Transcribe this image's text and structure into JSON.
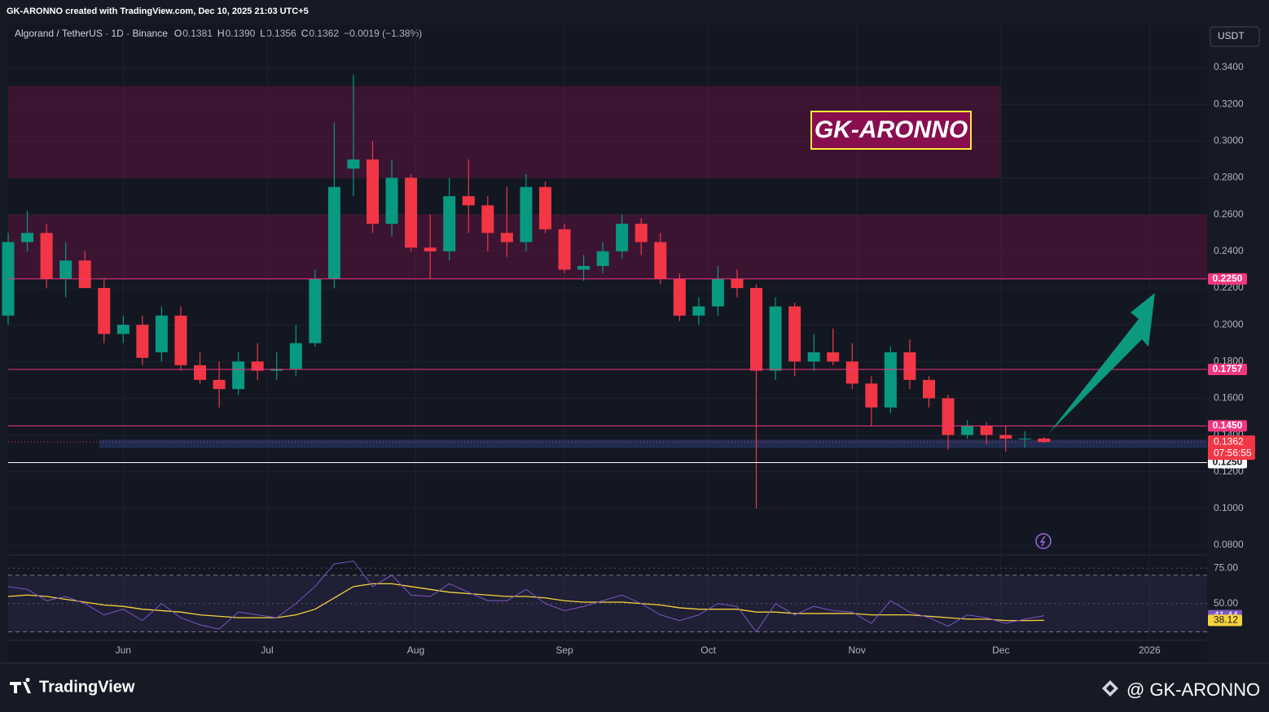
{
  "header": {
    "credit": "GK-ARONNO created with TradingView.com, Dec 10, 2025 21:03 UTC+5",
    "currency": "USDT"
  },
  "footer": {
    "brand": "TradingView",
    "author": "@ GK-ARONNO"
  },
  "watermark": "GK-ARONNO",
  "legend": {
    "symbol": "Algorand / TetherUS · 1D · Binance",
    "items": [
      {
        "key": "O",
        "value": "0.1381"
      },
      {
        "key": "H",
        "value": "0.1390"
      },
      {
        "key": "L",
        "value": "0.1356"
      },
      {
        "key": "C",
        "value": "0.1362"
      }
    ],
    "change": "−0.0019 (−1.38%)"
  },
  "chart_data": {
    "type": "candlestick",
    "up_color": "#089981",
    "down_color": "#f23645",
    "x": [
      0,
      4,
      8,
      12,
      16,
      20,
      24,
      28,
      32,
      36,
      40,
      44,
      48,
      52,
      56,
      60,
      64,
      68,
      72,
      76,
      80,
      84,
      88,
      92,
      96,
      100,
      104,
      108,
      112,
      116,
      120,
      124,
      128,
      132,
      136,
      140,
      144,
      148,
      152,
      156,
      160,
      164,
      168,
      172,
      176,
      180,
      184,
      188,
      192,
      196,
      200,
      204,
      208,
      212,
      216
    ],
    "open": [
      0.205,
      0.245,
      0.25,
      0.225,
      0.235,
      0.22,
      0.195,
      0.2,
      0.185,
      0.205,
      0.178,
      0.17,
      0.165,
      0.18,
      0.175,
      0.176,
      0.19,
      0.225,
      0.285,
      0.29,
      0.255,
      0.28,
      0.242,
      0.24,
      0.27,
      0.265,
      0.25,
      0.245,
      0.275,
      0.252,
      0.23,
      0.232,
      0.24,
      0.255,
      0.245,
      0.225,
      0.205,
      0.21,
      0.225,
      0.22,
      0.175,
      0.21,
      0.18,
      0.185,
      0.18,
      0.168,
      0.155,
      0.185,
      0.17,
      0.16,
      0.14,
      0.145,
      0.14,
      0.138,
      0.1381
    ],
    "high": [
      0.25,
      0.262,
      0.255,
      0.245,
      0.24,
      0.225,
      0.205,
      0.205,
      0.21,
      0.21,
      0.185,
      0.18,
      0.185,
      0.19,
      0.185,
      0.2,
      0.23,
      0.31,
      0.336,
      0.3,
      0.29,
      0.282,
      0.26,
      0.28,
      0.29,
      0.27,
      0.275,
      0.282,
      0.278,
      0.255,
      0.238,
      0.245,
      0.26,
      0.258,
      0.25,
      0.228,
      0.215,
      0.232,
      0.23,
      0.222,
      0.215,
      0.212,
      0.195,
      0.198,
      0.19,
      0.172,
      0.188,
      0.192,
      0.172,
      0.162,
      0.148,
      0.147,
      0.145,
      0.142,
      0.139
    ],
    "low": [
      0.2,
      0.24,
      0.22,
      0.215,
      0.22,
      0.19,
      0.19,
      0.178,
      0.18,
      0.175,
      0.168,
      0.155,
      0.162,
      0.17,
      0.17,
      0.172,
      0.188,
      0.22,
      0.27,
      0.25,
      0.248,
      0.24,
      0.225,
      0.235,
      0.25,
      0.24,
      0.237,
      0.24,
      0.25,
      0.228,
      0.224,
      0.228,
      0.236,
      0.238,
      0.222,
      0.202,
      0.2,
      0.205,
      0.215,
      0.1,
      0.17,
      0.172,
      0.175,
      0.178,
      0.165,
      0.145,
      0.152,
      0.165,
      0.155,
      0.132,
      0.138,
      0.135,
      0.131,
      0.133,
      0.1356
    ],
    "close": [
      0.245,
      0.25,
      0.225,
      0.235,
      0.22,
      0.195,
      0.2,
      0.182,
      0.205,
      0.178,
      0.17,
      0.165,
      0.18,
      0.175,
      0.176,
      0.19,
      0.225,
      0.275,
      0.29,
      0.255,
      0.28,
      0.242,
      0.24,
      0.27,
      0.265,
      0.25,
      0.245,
      0.275,
      0.252,
      0.23,
      0.232,
      0.24,
      0.255,
      0.245,
      0.225,
      0.205,
      0.21,
      0.225,
      0.22,
      0.175,
      0.21,
      0.18,
      0.185,
      0.18,
      0.168,
      0.155,
      0.185,
      0.17,
      0.16,
      0.14,
      0.145,
      0.14,
      0.138,
      0.1381,
      0.1362
    ],
    "xlim": [
      0,
      250
    ],
    "xticks": [
      {
        "value": 24,
        "label": "Jun"
      },
      {
        "value": 54,
        "label": "Jul"
      },
      {
        "value": 85,
        "label": "Aug"
      },
      {
        "value": 116,
        "label": "Sep"
      },
      {
        "value": 146,
        "label": "Oct"
      },
      {
        "value": 177,
        "label": "Nov"
      },
      {
        "value": 207,
        "label": "Dec"
      },
      {
        "value": 238,
        "label": "2026"
      }
    ],
    "ylim": [
      0.0756,
      0.3635
    ],
    "yticks": [
      {
        "value": 0.08,
        "label": "0.0800"
      },
      {
        "value": 0.1,
        "label": "0.1000"
      },
      {
        "value": 0.12,
        "label": "0.1200"
      },
      {
        "value": 0.14,
        "label": "0.1400"
      },
      {
        "value": 0.16,
        "label": "0.1600"
      },
      {
        "value": 0.18,
        "label": "0.1800"
      },
      {
        "value": 0.2,
        "label": "0.2000"
      },
      {
        "value": 0.22,
        "label": "0.2200"
      },
      {
        "value": 0.24,
        "label": "0.2400"
      },
      {
        "value": 0.26,
        "label": "0.2600"
      },
      {
        "value": 0.28,
        "label": "0.2800"
      },
      {
        "value": 0.3,
        "label": "0.3000"
      },
      {
        "value": 0.32,
        "label": "0.3200"
      },
      {
        "value": 0.34,
        "label": "0.3400"
      }
    ],
    "grid": true,
    "zones": [
      {
        "from": 0.28,
        "to": 0.33,
        "start": 0,
        "end": 207,
        "color": "rgba(136,14,79,0.35)"
      },
      {
        "from": 0.225,
        "to": 0.26,
        "start": 0,
        "end": 250,
        "color": "rgba(136,14,79,0.35)"
      },
      {
        "from": 0.133,
        "to": 0.1375,
        "start": 19,
        "end": 250,
        "color": "rgba(41,62,120,0.55)"
      }
    ],
    "levels": [
      {
        "value": 0.225,
        "label": "0.2250",
        "color": "#f23680"
      },
      {
        "value": 0.1757,
        "label": "0.1757",
        "color": "#f23680"
      },
      {
        "value": 0.145,
        "label": "0.1450",
        "color": "#f23680"
      },
      {
        "value": 0.125,
        "label": "0.1250",
        "color": "#ffffff"
      }
    ],
    "last": {
      "value": 0.1362,
      "label": "0.1362",
      "countdown": "07:56:55"
    },
    "rsi": {
      "ylim": [
        24,
        82
      ],
      "yticks": [
        {
          "value": 75,
          "label": "75.00"
        },
        {
          "value": 50,
          "label": "50.00"
        }
      ],
      "bands": [
        70,
        30
      ],
      "color": "#7e57c2",
      "ma_color": "#f7d33c",
      "values": [
        62,
        60,
        52,
        55,
        50,
        42,
        46,
        38,
        50,
        40,
        35,
        32,
        44,
        42,
        40,
        50,
        62,
        78,
        80,
        62,
        70,
        56,
        55,
        64,
        58,
        52,
        52,
        60,
        50,
        45,
        48,
        52,
        56,
        50,
        42,
        38,
        42,
        50,
        48,
        30,
        50,
        42,
        48,
        45,
        44,
        36,
        52,
        44,
        40,
        34,
        42,
        40,
        36,
        39,
        41.44
      ],
      "ma": [
        55,
        56,
        55,
        53,
        51,
        49,
        48,
        46,
        45,
        44,
        42,
        41,
        40,
        40,
        40,
        42,
        46,
        54,
        62,
        64,
        64,
        62,
        60,
        58,
        57,
        56,
        55,
        55,
        54,
        52,
        51,
        51,
        51,
        50,
        49,
        47,
        46,
        46,
        46,
        44,
        44,
        43,
        43,
        43,
        43,
        42,
        42,
        42,
        41,
        40,
        39,
        39,
        38,
        38,
        38.12
      ]
    }
  }
}
